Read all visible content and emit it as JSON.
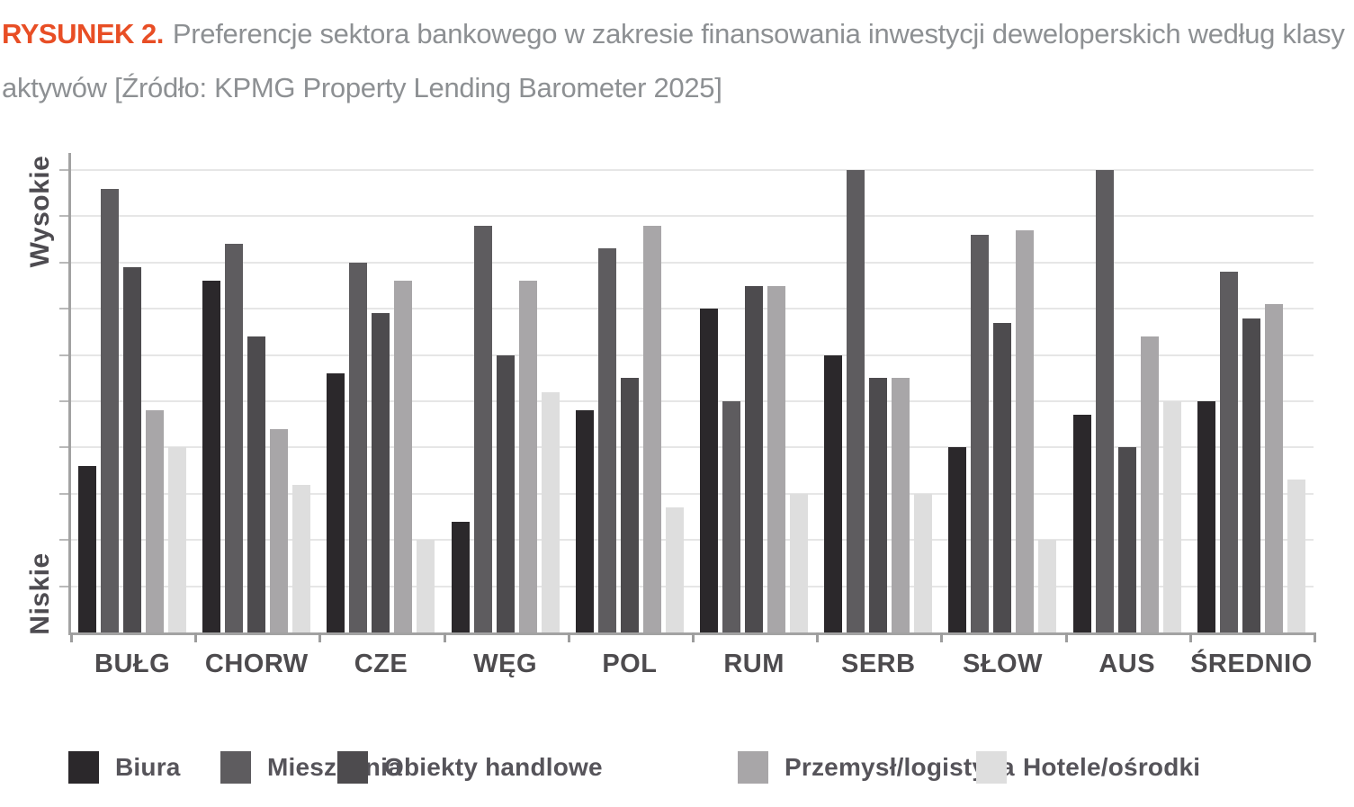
{
  "figure": {
    "label": "RYSUNEK 2.",
    "caption_line1": "Preferencje sektora bankowego w zakresie finansowania inwestycji deweloperskich według klasy",
    "caption_line2": "aktywów [Źródło: KPMG Property Lending Barometer 2025]"
  },
  "chart_data": {
    "type": "bar",
    "title": "Preferencje sektora bankowego w zakresie finansowania inwestycji deweloperskich według klasy aktywów",
    "source": "KPMG Property Lending Barometer 2025",
    "y_axis": {
      "top_label": "Wysokie",
      "bottom_label": "Niskie",
      "ylim": [
        0,
        10
      ],
      "numeric_ticks_shown": false
    },
    "grid": true,
    "legend_position": "bottom",
    "categories": [
      "BUŁG",
      "CHORW",
      "CZE",
      "WĘG",
      "POL",
      "RUM",
      "SERB",
      "SŁOW",
      "AUS",
      "ŚREDNIO"
    ],
    "series": [
      {
        "name": "Biura",
        "color": "#2b282b",
        "values": [
          3.6,
          7.6,
          5.6,
          2.4,
          4.8,
          7.0,
          6.0,
          4.0,
          4.7,
          5.0
        ]
      },
      {
        "name": "Mieszkania",
        "color": "#5e5c5f",
        "values": [
          9.6,
          8.4,
          8.0,
          8.8,
          8.3,
          5.0,
          10.0,
          8.6,
          10.0,
          7.8
        ]
      },
      {
        "name": "Obiekty handlowe",
        "color": "#4d4b4e",
        "values": [
          7.9,
          6.4,
          6.9,
          6.0,
          5.5,
          7.5,
          5.5,
          6.7,
          4.0,
          6.8
        ]
      },
      {
        "name": "Przemysł/logistyka",
        "color": "#a8a6a8",
        "values": [
          4.8,
          4.4,
          7.6,
          7.6,
          8.8,
          7.5,
          5.5,
          8.7,
          6.4,
          7.1
        ]
      },
      {
        "name": "Hotele/ośrodki",
        "color": "#dedede",
        "values": [
          4.0,
          3.2,
          2.0,
          5.2,
          2.7,
          3.0,
          3.0,
          2.0,
          5.0,
          3.3
        ]
      }
    ]
  },
  "colors": {
    "caption_accent": "#e84e25",
    "caption_text": "#8d9093",
    "axis": "#a2a2a2",
    "gridline": "#e6e6e6",
    "label_text": "#4d4b4e"
  }
}
